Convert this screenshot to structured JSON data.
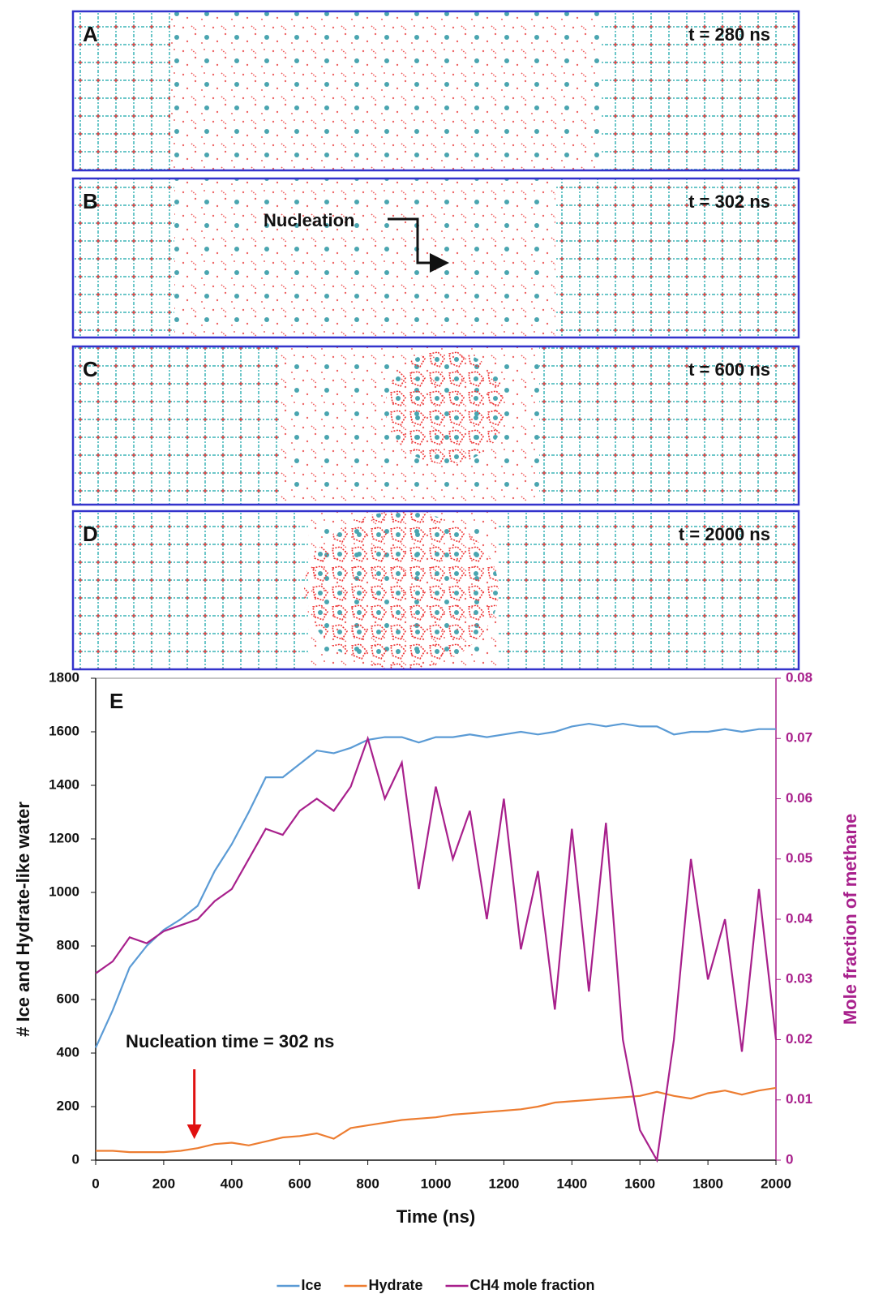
{
  "panels": [
    {
      "label": "A",
      "time": "t = 280 ns"
    },
    {
      "label": "B",
      "time": "t = 302 ns"
    },
    {
      "label": "C",
      "time": "t = 600 ns"
    },
    {
      "label": "D",
      "time": "t = 2000 ns"
    }
  ],
  "panel_annotation": "Nucleation",
  "chart_data": {
    "type": "line",
    "panel_label": "E",
    "xlabel": "Time (ns)",
    "ylabel": "# Ice and Hydrate-like water",
    "y2label": "Mole fraction of methane",
    "annotation": {
      "text": "Nucleation time = 302 ns",
      "x": 290
    },
    "xlim": [
      0,
      2000
    ],
    "xticks": [
      0,
      200,
      400,
      600,
      800,
      1000,
      1200,
      1400,
      1600,
      1800,
      2000
    ],
    "ylim": [
      0,
      1800
    ],
    "yticks": [
      0,
      200,
      400,
      600,
      800,
      1000,
      1200,
      1400,
      1600,
      1800
    ],
    "y2lim": [
      0,
      0.08
    ],
    "y2ticks": [
      0,
      0.01,
      0.02,
      0.03,
      0.04,
      0.05,
      0.06,
      0.07,
      0.08
    ],
    "grid": false,
    "legend": "bottom",
    "x": [
      0,
      50,
      100,
      150,
      200,
      250,
      300,
      350,
      400,
      450,
      500,
      550,
      600,
      650,
      700,
      750,
      800,
      850,
      900,
      950,
      1000,
      1050,
      1100,
      1150,
      1200,
      1250,
      1300,
      1350,
      1400,
      1450,
      1500,
      1550,
      1600,
      1650,
      1700,
      1750,
      1800,
      1850,
      1900,
      1950,
      2000
    ],
    "series": [
      {
        "name": "Ice",
        "color": "#5b9bd5",
        "values": [
          420,
          560,
          720,
          800,
          860,
          900,
          950,
          1080,
          1180,
          1300,
          1430,
          1430,
          1480,
          1530,
          1520,
          1540,
          1570,
          1580,
          1580,
          1560,
          1580,
          1580,
          1590,
          1580,
          1590,
          1600,
          1590,
          1600,
          1620,
          1630,
          1620,
          1630,
          1620,
          1620,
          1590,
          1600,
          1600,
          1610,
          1600,
          1610,
          1610
        ]
      },
      {
        "name": "Hydrate",
        "color": "#ed7d31",
        "values": [
          35,
          35,
          30,
          30,
          30,
          35,
          45,
          60,
          65,
          55,
          70,
          85,
          90,
          100,
          80,
          120,
          130,
          140,
          150,
          155,
          160,
          170,
          175,
          180,
          185,
          190,
          200,
          215,
          220,
          225,
          230,
          235,
          240,
          255,
          240,
          230,
          250,
          260,
          245,
          260,
          270
        ]
      },
      {
        "name": "CH4 mole fraction",
        "color": "#a8208c",
        "axis": "y2",
        "values": [
          0.031,
          0.033,
          0.037,
          0.036,
          0.038,
          0.039,
          0.04,
          0.043,
          0.045,
          0.05,
          0.055,
          0.054,
          0.058,
          0.06,
          0.058,
          0.062,
          0.07,
          0.06,
          0.066,
          0.045,
          0.062,
          0.05,
          0.058,
          0.04,
          0.06,
          0.035,
          0.048,
          0.025,
          0.055,
          0.028,
          0.056,
          0.02,
          0.005,
          0,
          0.02,
          0.05,
          0.03,
          0.04,
          0.018,
          0.045,
          0.02
        ]
      }
    ]
  }
}
